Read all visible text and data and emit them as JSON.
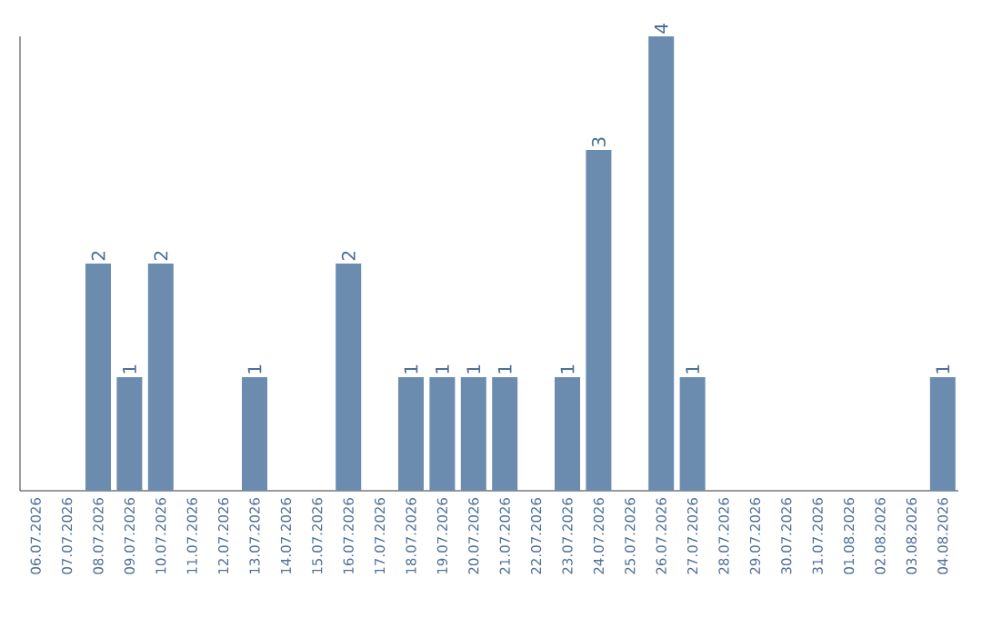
{
  "chart_data": {
    "type": "bar",
    "color": "#6b8cae",
    "categories": [
      "06.07.2026",
      "07.07.2026",
      "08.07.2026",
      "09.07.2026",
      "10.07.2026",
      "11.07.2026",
      "12.07.2026",
      "13.07.2026",
      "14.07.2026",
      "15.07.2026",
      "16.07.2026",
      "17.07.2026",
      "18.07.2026",
      "19.07.2026",
      "20.07.2026",
      "21.07.2026",
      "22.07.2026",
      "23.07.2026",
      "24.07.2026",
      "25.07.2026",
      "26.07.2026",
      "27.07.2026",
      "28.07.2026",
      "29.07.2026",
      "30.07.2026",
      "31.07.2026",
      "01.08.2026",
      "02.08.2026",
      "03.08.2026",
      "04.08.2026"
    ],
    "values": [
      0,
      0,
      2,
      1,
      2,
      0,
      0,
      1,
      0,
      0,
      2,
      0,
      1,
      1,
      1,
      1,
      0,
      1,
      3,
      0,
      4,
      1,
      0,
      0,
      0,
      0,
      0,
      0,
      0,
      1
    ],
    "value_labels": [
      null,
      null,
      "2",
      "1",
      "2",
      null,
      null,
      "1",
      null,
      null,
      "2",
      null,
      "1",
      "1",
      "1",
      "1",
      null,
      "1",
      "3",
      null,
      "4",
      "1",
      null,
      null,
      null,
      null,
      null,
      null,
      null,
      "1"
    ],
    "tick_labels": "x"
  }
}
